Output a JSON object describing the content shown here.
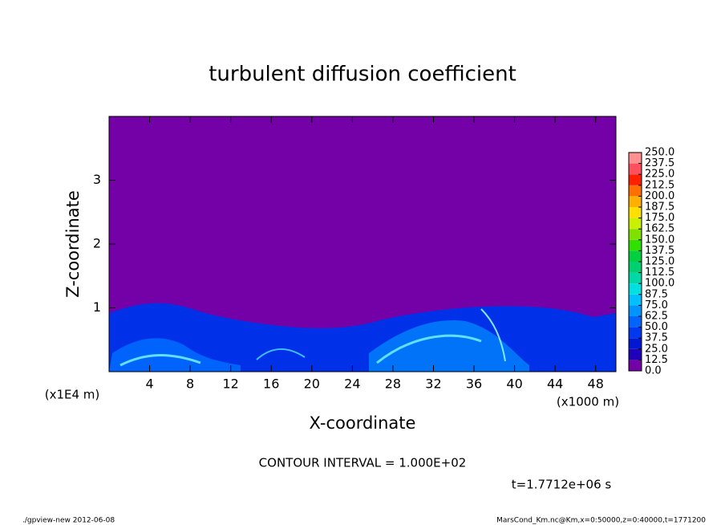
{
  "chart_data": {
    "type": "contour",
    "title": "turbulent diffusion coefficient",
    "xlabel": "X-coordinate",
    "ylabel": "Z-coordinate",
    "xunit": "(x1000 m)",
    "yunit": "(x1E4 m)",
    "xlim": [
      0,
      50
    ],
    "ylim": [
      0,
      4
    ],
    "xticks": [
      4,
      8,
      12,
      16,
      20,
      24,
      28,
      32,
      36,
      40,
      44,
      48
    ],
    "yticks": [
      1,
      2,
      3
    ],
    "colorbar": {
      "levels": [
        {
          "value": 0,
          "label": "0.0"
        },
        {
          "value": 12.5,
          "label": "12.5"
        },
        {
          "value": 25,
          "label": "25.0"
        },
        {
          "value": 37.5,
          "label": "37.5"
        },
        {
          "value": 50,
          "label": "50.0"
        },
        {
          "value": 62.5,
          "label": "62.5"
        },
        {
          "value": 75,
          "label": "75.0"
        },
        {
          "value": 87.5,
          "label": "87.5"
        },
        {
          "value": 100,
          "label": "100.0"
        },
        {
          "value": 112.5,
          "label": "112.5"
        },
        {
          "value": 125,
          "label": "125.0"
        },
        {
          "value": 137.5,
          "label": "137.5"
        },
        {
          "value": 150,
          "label": "150.0"
        },
        {
          "value": 162.5,
          "label": "162.5"
        },
        {
          "value": 175,
          "label": "175.0"
        },
        {
          "value": 187.5,
          "label": "187.5"
        },
        {
          "value": 200,
          "label": "200.0"
        },
        {
          "value": 212.5,
          "label": "212.5"
        },
        {
          "value": 225,
          "label": "225.0"
        },
        {
          "value": 237.5,
          "label": "237.5"
        },
        {
          "value": 250,
          "label": "250.0"
        }
      ],
      "colors": [
        "#7400a8",
        "#2000b8",
        "#0018d0",
        "#0038f0",
        "#0064ff",
        "#0094ff",
        "#00c0ff",
        "#00e0e0",
        "#00d8a8",
        "#00d070",
        "#00d040",
        "#30e000",
        "#80e000",
        "#c8f000",
        "#ffe000",
        "#ffb000",
        "#ff7000",
        "#ff2000",
        "#ff5060",
        "#ff9090"
      ]
    },
    "contour_interval": "CONTOUR INTERVAL = 1.000E+02",
    "time_label": "t=1.7712e+06 s",
    "footer_left": "./gpview-new  2012-06-08",
    "footer_right": "MarsCond_Km.nc@Km,x=0:50000,z=0:40000,t=1771200"
  }
}
